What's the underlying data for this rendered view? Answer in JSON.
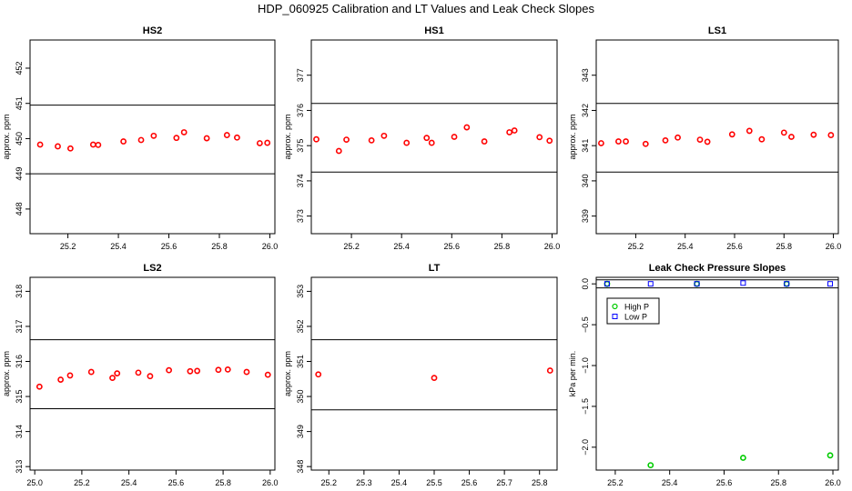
{
  "figure": {
    "title": "HDP_060925  Calibration and LT Values and Leak Check Slopes"
  },
  "chart_data": [
    {
      "type": "scatter",
      "title": "HS2",
      "ylabel": "approx. ppm",
      "xlim": [
        25.05,
        26.02
      ],
      "ylim": [
        447.3,
        452.8
      ],
      "xticks": [
        25.2,
        25.4,
        25.6,
        25.8,
        26.0
      ],
      "xtick_labels": [
        "25.2",
        "25.4",
        "25.6",
        "25.8",
        "26.0"
      ],
      "yticks": [
        448,
        449,
        450,
        451,
        452
      ],
      "ytick_labels": [
        "448",
        "449",
        "450",
        "451",
        "452"
      ],
      "hlines": [
        450.95,
        449.0
      ],
      "series": [
        {
          "color": "#ff0000",
          "marker": "circle",
          "x": [
            25.09,
            25.16,
            25.21,
            25.3,
            25.32,
            25.42,
            25.49,
            25.54,
            25.63,
            25.66,
            25.75,
            25.83,
            25.87,
            25.96,
            25.99
          ],
          "y": [
            449.83,
            449.78,
            449.72,
            449.83,
            449.82,
            449.92,
            449.96,
            450.08,
            450.02,
            450.18,
            450.01,
            450.1,
            450.03,
            449.87,
            449.88
          ]
        }
      ]
    },
    {
      "type": "scatter",
      "title": "HS1",
      "ylabel": "approx. ppm",
      "xlim": [
        25.04,
        26.02
      ],
      "ylim": [
        372.5,
        378.0
      ],
      "xticks": [
        25.2,
        25.4,
        25.6,
        25.8,
        26.0
      ],
      "xtick_labels": [
        "25.2",
        "25.4",
        "25.6",
        "25.8",
        "26.0"
      ],
      "yticks": [
        373,
        374,
        375,
        376,
        377
      ],
      "ytick_labels": [
        "373",
        "374",
        "375",
        "376",
        "377"
      ],
      "hlines": [
        376.2,
        374.25
      ],
      "series": [
        {
          "color": "#ff0000",
          "marker": "circle",
          "x": [
            25.06,
            25.15,
            25.18,
            25.28,
            25.33,
            25.42,
            25.5,
            25.52,
            25.61,
            25.66,
            25.73,
            25.83,
            25.85,
            25.95,
            25.99
          ],
          "y": [
            375.18,
            374.85,
            375.17,
            375.15,
            375.28,
            375.08,
            375.22,
            375.08,
            375.25,
            375.52,
            375.12,
            375.38,
            375.43,
            375.24,
            375.14
          ]
        }
      ]
    },
    {
      "type": "scatter",
      "title": "LS1",
      "ylabel": "approx. ppm",
      "xlim": [
        25.04,
        26.02
      ],
      "ylim": [
        338.5,
        344.0
      ],
      "xticks": [
        25.2,
        25.4,
        25.6,
        25.8,
        26.0
      ],
      "xtick_labels": [
        "25.2",
        "25.4",
        "25.6",
        "25.8",
        "26.0"
      ],
      "yticks": [
        339,
        340,
        341,
        342,
        343
      ],
      "ytick_labels": [
        "339",
        "340",
        "341",
        "342",
        "343"
      ],
      "hlines": [
        342.2,
        340.25
      ],
      "series": [
        {
          "color": "#ff0000",
          "marker": "circle",
          "x": [
            25.06,
            25.13,
            25.16,
            25.24,
            25.32,
            25.37,
            25.46,
            25.49,
            25.59,
            25.66,
            25.71,
            25.8,
            25.83,
            25.92,
            25.99
          ],
          "y": [
            341.07,
            341.12,
            341.12,
            341.05,
            341.15,
            341.23,
            341.17,
            341.11,
            341.32,
            341.42,
            341.18,
            341.37,
            341.25,
            341.31,
            341.3
          ]
        }
      ]
    },
    {
      "type": "scatter",
      "title": "LS2",
      "ylabel": "approx. ppm",
      "xlim": [
        24.98,
        26.02
      ],
      "ylim": [
        312.9,
        318.4
      ],
      "xticks": [
        25.0,
        25.2,
        25.4,
        25.6,
        25.8,
        26.0
      ],
      "xtick_labels": [
        "25.0",
        "25.2",
        "25.4",
        "25.6",
        "25.8",
        "26.0"
      ],
      "yticks": [
        313,
        314,
        315,
        316,
        317,
        318
      ],
      "ytick_labels": [
        "313",
        "314",
        "315",
        "316",
        "317",
        "318"
      ],
      "hlines": [
        316.62,
        314.65
      ],
      "series": [
        {
          "color": "#ff0000",
          "marker": "circle",
          "x": [
            25.02,
            25.11,
            25.15,
            25.24,
            25.33,
            25.35,
            25.44,
            25.49,
            25.57,
            25.66,
            25.69,
            25.78,
            25.82,
            25.9,
            25.99
          ],
          "y": [
            315.28,
            315.48,
            315.6,
            315.7,
            315.53,
            315.66,
            315.68,
            315.58,
            315.75,
            315.72,
            315.73,
            315.76,
            315.77,
            315.7,
            315.62
          ]
        }
      ]
    },
    {
      "type": "scatter",
      "title": "LT",
      "ylabel": "approx. ppm",
      "xlim": [
        25.15,
        25.85
      ],
      "ylim": [
        347.9,
        353.4
      ],
      "xticks": [
        25.2,
        25.3,
        25.4,
        25.5,
        25.6,
        25.7,
        25.8
      ],
      "xtick_labels": [
        "25.2",
        "25.3",
        "25.4",
        "25.5",
        "25.6",
        "25.7",
        "25.8"
      ],
      "yticks": [
        348,
        349,
        350,
        351,
        352,
        353
      ],
      "ytick_labels": [
        "348",
        "349",
        "350",
        "351",
        "352",
        "353"
      ],
      "hlines": [
        351.62,
        349.62
      ],
      "series": [
        {
          "color": "#ff0000",
          "marker": "circle",
          "x": [
            25.17,
            25.5,
            25.83
          ],
          "y": [
            350.63,
            350.53,
            350.74
          ]
        }
      ]
    },
    {
      "type": "scatter",
      "title": "Leak Check Pressure Slopes",
      "ylabel": "kPa per min.",
      "xlim": [
        25.13,
        26.02
      ],
      "ylim": [
        -2.28,
        0.08
      ],
      "xticks": [
        25.2,
        25.4,
        25.6,
        25.8,
        26.0
      ],
      "xtick_labels": [
        "25.2",
        "25.4",
        "25.6",
        "25.8",
        "26.0"
      ],
      "yticks": [
        0.0,
        -0.5,
        -1.0,
        -1.5,
        -2.0
      ],
      "ytick_labels": [
        "0.0",
        "−0.5",
        "−1.0",
        "−1.5",
        "−2.0"
      ],
      "hlines": [
        0.05,
        -0.05
      ],
      "legend": {
        "position": "top-left",
        "entries": [
          "High P",
          "Low P"
        ]
      },
      "series": [
        {
          "name": "High P",
          "color": "#00cc00",
          "marker": "circle",
          "x": [
            25.17,
            25.33,
            25.5,
            25.67,
            25.83,
            25.99
          ],
          "y": [
            0.0,
            -2.22,
            0.0,
            -2.13,
            0.0,
            -2.1
          ]
        },
        {
          "name": "Low P",
          "color": "#0000ff",
          "marker": "square",
          "x": [
            25.17,
            25.33,
            25.5,
            25.67,
            25.83,
            25.99
          ],
          "y": [
            0.0,
            0.0,
            0.0,
            0.01,
            0.0,
            0.0
          ]
        }
      ]
    }
  ]
}
